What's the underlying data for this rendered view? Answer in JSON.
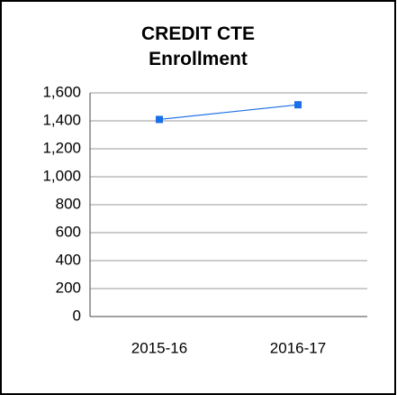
{
  "chart_data": {
    "type": "line",
    "title": "CREDIT CTE Enrollment",
    "categories": [
      "2015-16",
      "2016-17"
    ],
    "series": [
      {
        "name": "Enrollment",
        "color": "#1a6ee6",
        "values": [
          1410,
          1515
        ]
      }
    ],
    "ylim": [
      0,
      1600
    ],
    "yticks": [
      0,
      200,
      400,
      600,
      800,
      {
        "value": 1000,
        "label": "1,000"
      },
      {
        "value": 1200,
        "label": "1,200"
      },
      {
        "value": 1400,
        "label": "1,400"
      },
      {
        "value": 1600,
        "label": "1,600"
      }
    ],
    "grid": true
  }
}
